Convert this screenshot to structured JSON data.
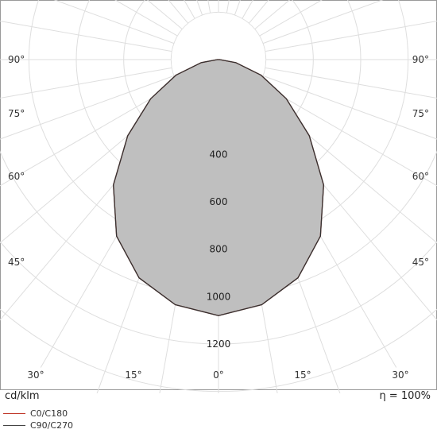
{
  "chart_data": {
    "type": "polar-intensity",
    "unit": "cd/klm",
    "efficiency": "η = 100%",
    "ring_values": [
      200,
      400,
      600,
      800,
      1000,
      1200,
      1400
    ],
    "ring_labels": [
      "400",
      "600",
      "800",
      "1000",
      "1200"
    ],
    "angle_labels_left": [
      "90°",
      "75°",
      "60°",
      "45°",
      "30°",
      "15°"
    ],
    "angle_labels_right": [
      "90°",
      "75°",
      "60°",
      "45°",
      "30°",
      "15°"
    ],
    "angle_label_bottom": "0°",
    "series": [
      {
        "name": "C0/C180",
        "color": "#c0392b",
        "angles": [
          0,
          10,
          20,
          30,
          40,
          50,
          60,
          70,
          80,
          90
        ],
        "values": [
          1080,
          1050,
          980,
          860,
          690,
          500,
          330,
          190,
          75,
          5
        ]
      },
      {
        "name": "C90/C270",
        "color": "#333333",
        "angles": [
          0,
          10,
          20,
          30,
          40,
          50,
          60,
          70,
          80,
          90
        ],
        "values": [
          1080,
          1050,
          980,
          860,
          690,
          500,
          330,
          190,
          75,
          5
        ]
      }
    ]
  },
  "legend": {
    "c0": "C0/C180",
    "c90": "C90/C270"
  },
  "footer": {
    "unit": "cd/klm",
    "efficiency": "η = 100%"
  }
}
